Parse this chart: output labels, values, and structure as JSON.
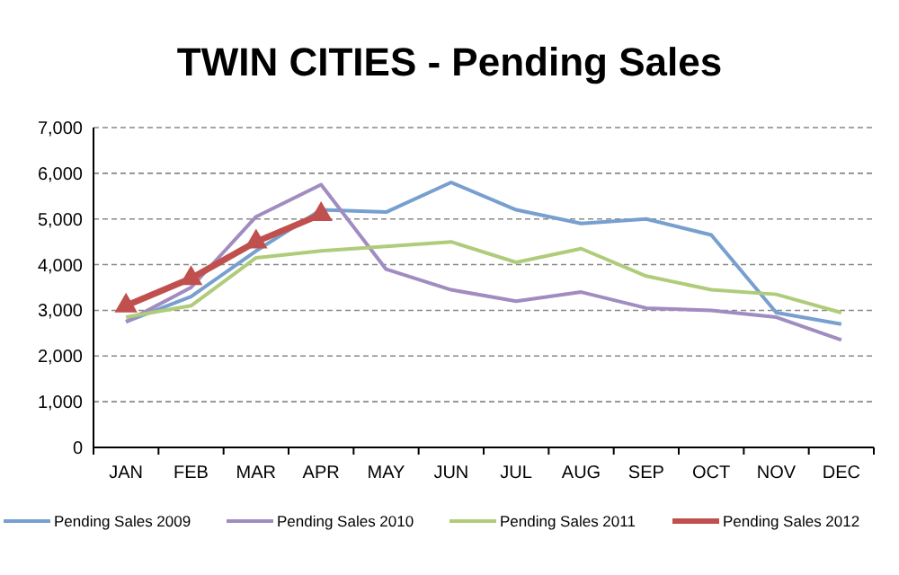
{
  "chart_data": {
    "type": "line",
    "title": "TWIN CITIES - Pending Sales",
    "categories": [
      "JAN",
      "FEB",
      "MAR",
      "APR",
      "MAY",
      "JUN",
      "JUL",
      "AUG",
      "SEP",
      "OCT",
      "NOV",
      "DEC"
    ],
    "series": [
      {
        "name": "Pending Sales 2009",
        "color": "#779fcf",
        "values": [
          2750,
          3300,
          4300,
          5200,
          5150,
          5800,
          5200,
          4900,
          5000,
          4650,
          2950,
          2700
        ],
        "marker": "none"
      },
      {
        "name": "Pending Sales 2010",
        "color": "#a08cc0",
        "values": [
          2750,
          3500,
          5050,
          5750,
          3900,
          3450,
          3200,
          3400,
          3050,
          3000,
          2850,
          2350
        ],
        "marker": "none"
      },
      {
        "name": "Pending Sales 2011",
        "color": "#b0cc7a",
        "values": [
          2850,
          3100,
          4150,
          4300,
          4400,
          4500,
          4050,
          4350,
          3750,
          3450,
          3350,
          2950
        ],
        "marker": "none"
      },
      {
        "name": "Pending Sales 2012",
        "color": "#c0504d",
        "values": [
          3100,
          3700,
          4500,
          5100,
          null,
          null,
          null,
          null,
          null,
          null,
          null,
          null
        ],
        "marker": "triangle"
      }
    ],
    "ylim": [
      0,
      7000
    ],
    "yticks": [
      {
        "value": 0,
        "label": "0"
      },
      {
        "value": 1000,
        "label": "1,000"
      },
      {
        "value": 2000,
        "label": "2,000"
      },
      {
        "value": 3000,
        "label": "3,000"
      },
      {
        "value": 4000,
        "label": "4,000"
      },
      {
        "value": 5000,
        "label": "5,000"
      },
      {
        "value": 6000,
        "label": "6,000"
      },
      {
        "value": 7000,
        "label": "7,000"
      }
    ],
    "grid": "y",
    "legend": "bottom"
  }
}
